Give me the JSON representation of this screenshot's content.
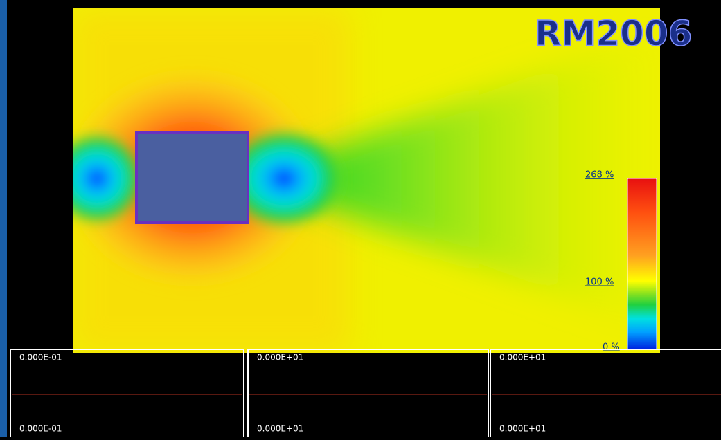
{
  "watermark": "RM2006",
  "colorbar": {
    "labels": [
      "268 %",
      "100 %",
      "0 %"
    ]
  },
  "panels": [
    {
      "top": "0.000E-01",
      "bottom": "0.000E-01"
    },
    {
      "top": "0.000E+01",
      "bottom": "0.000E+01"
    },
    {
      "top": "0.000E+01",
      "bottom": "0.000E+01"
    }
  ]
}
